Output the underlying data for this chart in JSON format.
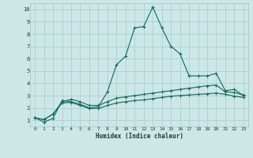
{
  "xlabel": "Humidex (Indice chaleur)",
  "bg_color": "#cce8e6",
  "grid_color": "#aacfcc",
  "line_color": "#1a6e60",
  "xlim": [
    -0.5,
    23.5
  ],
  "ylim": [
    0.5,
    10.5
  ],
  "xticks": [
    0,
    1,
    2,
    3,
    4,
    5,
    6,
    7,
    8,
    9,
    10,
    11,
    12,
    13,
    14,
    15,
    16,
    17,
    18,
    19,
    20,
    21,
    22,
    23
  ],
  "yticks": [
    1,
    2,
    3,
    4,
    5,
    6,
    7,
    8,
    9,
    10
  ],
  "line1_x": [
    0,
    1,
    2,
    3,
    4,
    5,
    6,
    7,
    8,
    9,
    10,
    11,
    12,
    13,
    14,
    15,
    16,
    17,
    18,
    19,
    20,
    21,
    22,
    23
  ],
  "line1_y": [
    1.2,
    0.85,
    1.15,
    2.6,
    2.5,
    2.3,
    2.0,
    2.1,
    3.3,
    5.5,
    6.2,
    8.5,
    8.6,
    10.2,
    8.5,
    7.0,
    6.4,
    4.6,
    4.6,
    4.6,
    4.8,
    3.4,
    3.5,
    3.0
  ],
  "line2_x": [
    0,
    1,
    2,
    3,
    4,
    5,
    6,
    7,
    8,
    9,
    10,
    11,
    12,
    13,
    14,
    15,
    16,
    17,
    18,
    19,
    20,
    21,
    22,
    23
  ],
  "line2_y": [
    1.2,
    1.05,
    1.5,
    2.5,
    2.7,
    2.5,
    2.2,
    2.2,
    2.5,
    2.8,
    2.9,
    3.0,
    3.1,
    3.2,
    3.3,
    3.4,
    3.5,
    3.6,
    3.7,
    3.8,
    3.85,
    3.3,
    3.25,
    3.05
  ],
  "line3_x": [
    0,
    1,
    2,
    3,
    4,
    5,
    6,
    7,
    8,
    9,
    10,
    11,
    12,
    13,
    14,
    15,
    16,
    17,
    18,
    19,
    20,
    21,
    22,
    23
  ],
  "line3_y": [
    1.2,
    1.05,
    1.5,
    2.4,
    2.45,
    2.2,
    1.95,
    1.95,
    2.2,
    2.4,
    2.5,
    2.6,
    2.65,
    2.75,
    2.85,
    2.95,
    3.0,
    3.05,
    3.1,
    3.15,
    3.2,
    3.1,
    2.95,
    2.85
  ]
}
